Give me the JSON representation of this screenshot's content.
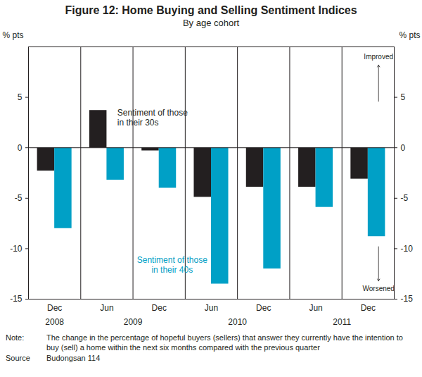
{
  "chart_data": {
    "type": "bar",
    "title": "Figure 12: Home Buying and Selling Sentiment Indices",
    "subtitle": "By age cohort",
    "categories": [
      "Dec",
      "Jun",
      "Dec",
      "Jun",
      "Dec",
      "Jun",
      "Dec"
    ],
    "years": [
      "2008",
      "2009",
      "2009",
      "2010",
      "2010",
      "2011",
      "2011"
    ],
    "series": [
      {
        "name": "Sentiment of those\nin their 30s",
        "color": "#231f20",
        "values": [
          -2.3,
          3.7,
          -0.3,
          -4.9,
          -3.9,
          -3.9,
          -3.1
        ]
      },
      {
        "name": "Sentiment of those\nin their 40s",
        "color": "#00a0c6",
        "values": [
          -8.0,
          -3.2,
          -4.0,
          -13.5,
          -12.0,
          -5.9,
          -8.8
        ]
      }
    ],
    "y_label": "% pts",
    "ylim": [
      -15,
      10
    ],
    "yticks": [
      -15,
      -10,
      -5,
      0,
      5
    ],
    "grid": false,
    "annotations": [
      "Improved",
      "Worsened"
    ],
    "note_label": "Note:",
    "note": "The change in the percentage of hopeful buyers (sellers) that answer they currently have the intention to buy (sell) a home within the next six months compared with the previous quarter",
    "source_label": "Source",
    "source": "Budongsan 114"
  }
}
